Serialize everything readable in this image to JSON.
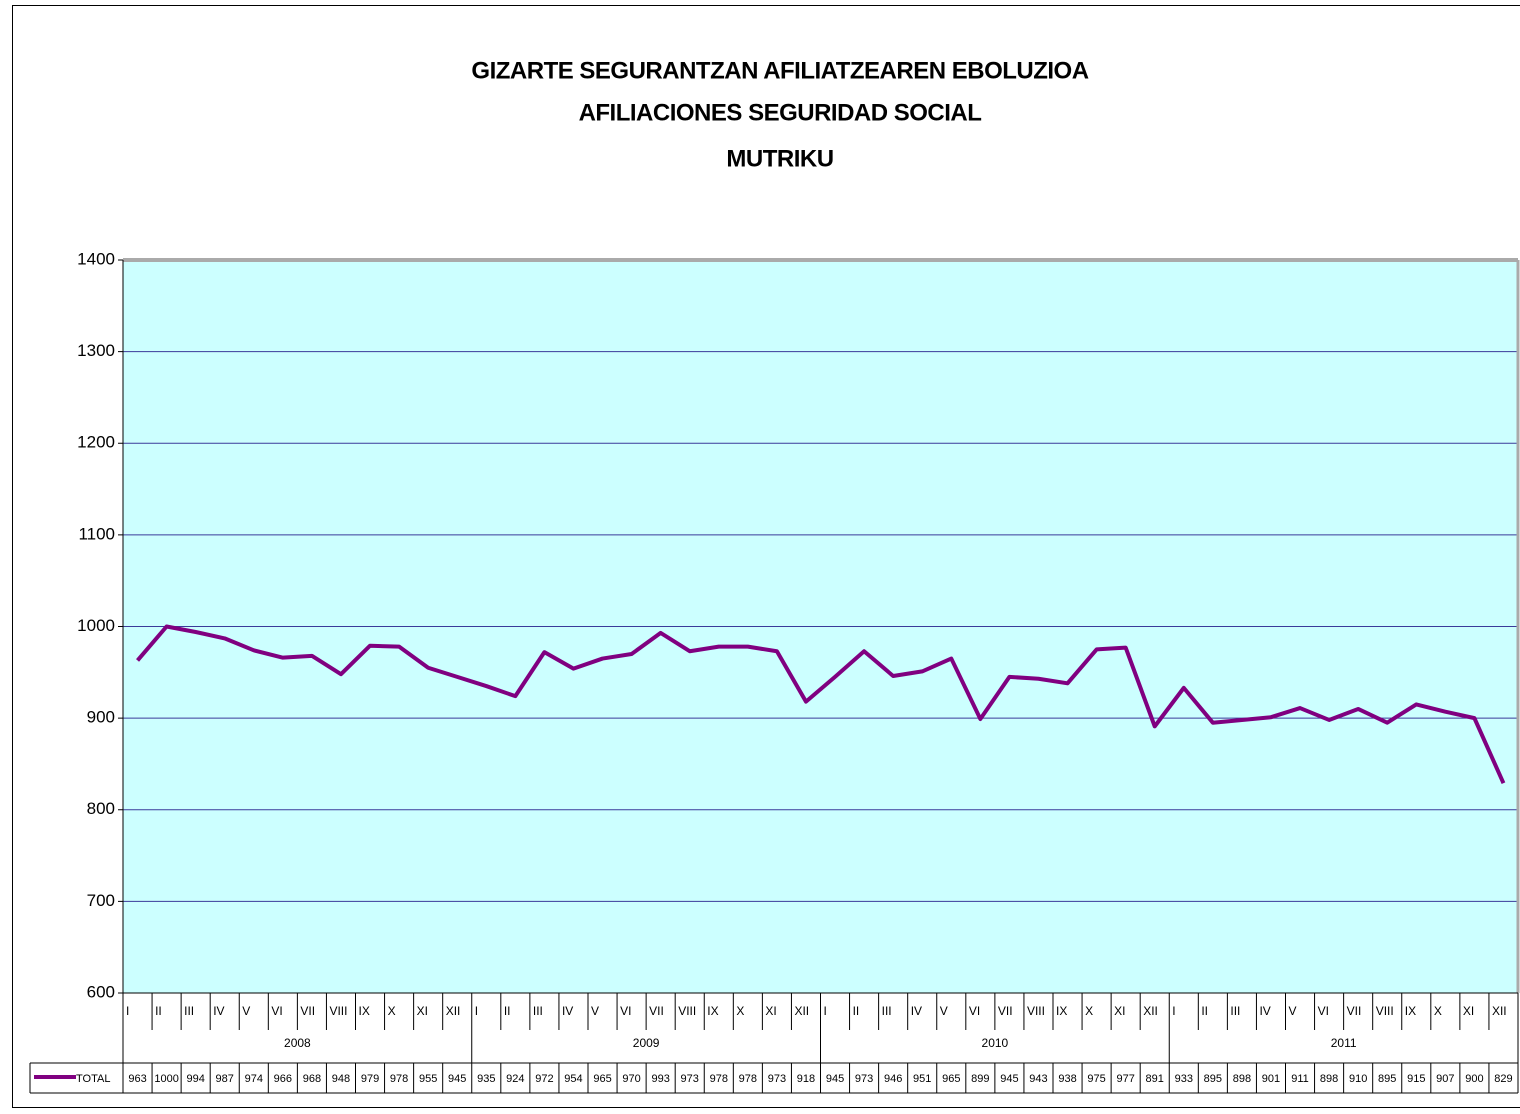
{
  "chart_data": {
    "type": "line",
    "title": "GIZARTE SEGURANTZAN AFILIATZEAREN EBOLUZIOA",
    "subtitle": "AFILIACIONES SEGURIDAD SOCIAL",
    "subtitle2": "MUTRIKU",
    "categories": [
      "I",
      "II",
      "III",
      "IV",
      "V",
      "VI",
      "VII",
      "VIII",
      "IX",
      "X",
      "XI",
      "XII",
      "I",
      "II",
      "III",
      "IV",
      "V",
      "VI",
      "VII",
      "VIII",
      "IX",
      "X",
      "XI",
      "XII",
      "I",
      "II",
      "III",
      "IV",
      "V",
      "VI",
      "VII",
      "VIII",
      "IX",
      "X",
      "XI",
      "XII",
      "I",
      "II",
      "III",
      "IV",
      "V",
      "VI",
      "VII",
      "VIII",
      "IX",
      "X",
      "XI",
      "XII"
    ],
    "years": [
      "2008",
      "2009",
      "2010",
      "2011"
    ],
    "series": [
      {
        "name": "TOTAL",
        "color": "#800080",
        "values": [
          963,
          1000,
          994,
          987,
          974,
          966,
          968,
          948,
          979,
          978,
          955,
          945,
          935,
          924,
          972,
          954,
          965,
          970,
          993,
          973,
          978,
          978,
          973,
          918,
          945,
          973,
          946,
          951,
          965,
          899,
          945,
          943,
          938,
          975,
          977,
          891,
          933,
          895,
          898,
          901,
          911,
          898,
          910,
          895,
          915,
          907,
          900,
          829
        ]
      }
    ],
    "ylim": [
      600,
      1400
    ],
    "yticks": [
      600,
      700,
      800,
      900,
      1000,
      1100,
      1200,
      1300,
      1400
    ],
    "grid": true,
    "data_table": true
  }
}
